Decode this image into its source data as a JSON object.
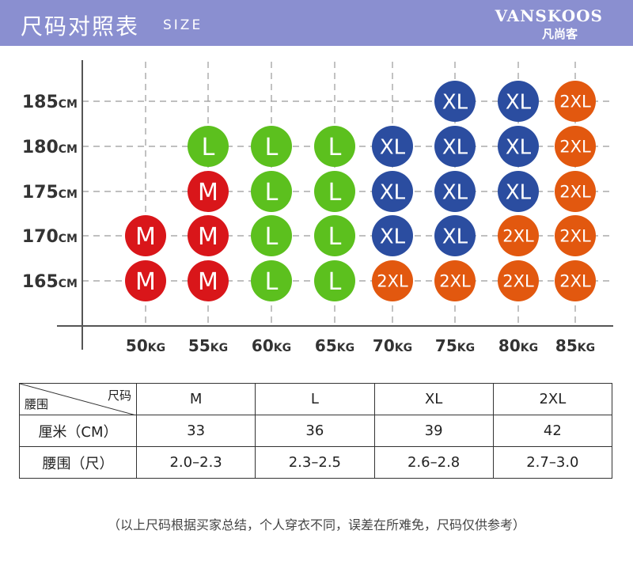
{
  "header": {
    "title": "尺码对照表",
    "subtitle": "SIZE",
    "brand": "VANSKOOS",
    "brand_cn": "凡尚客"
  },
  "chart_data": {
    "type": "table",
    "y_ticks": [
      {
        "num": "185",
        "unit": "CM"
      },
      {
        "num": "180",
        "unit": "CM"
      },
      {
        "num": "175",
        "unit": "CM"
      },
      {
        "num": "170",
        "unit": "CM"
      },
      {
        "num": "165",
        "unit": "CM"
      }
    ],
    "x_ticks": [
      {
        "num": "50",
        "unit": "KG"
      },
      {
        "num": "55",
        "unit": "KG"
      },
      {
        "num": "60",
        "unit": "KG"
      },
      {
        "num": "65",
        "unit": "KG"
      },
      {
        "num": "70",
        "unit": "KG"
      },
      {
        "num": "75",
        "unit": "KG"
      },
      {
        "num": "80",
        "unit": "KG"
      },
      {
        "num": "85",
        "unit": "KG"
      }
    ],
    "grid": [
      [
        "",
        "",
        "",
        "",
        "",
        "XL",
        "XL",
        "2XL"
      ],
      [
        "",
        "L",
        "L",
        "L",
        "XL",
        "XL",
        "XL",
        "2XL"
      ],
      [
        "",
        "M",
        "L",
        "L",
        "XL",
        "XL",
        "XL",
        "2XL"
      ],
      [
        "M",
        "M",
        "L",
        "L",
        "XL",
        "XL",
        "2XL",
        "2XL"
      ],
      [
        "M",
        "M",
        "L",
        "L",
        "2XL",
        "2XL",
        "2XL",
        "2XL"
      ]
    ],
    "colors": {
      "M": "#d9161a",
      "L": "#5cc01e",
      "XL": "#2b4da0",
      "2XL": "#e2580f"
    }
  },
  "size_table": {
    "corner_top": "尺码",
    "corner_bottom": "腰围",
    "columns": [
      "M",
      "L",
      "XL",
      "2XL"
    ],
    "rows": [
      {
        "label": "厘米（CM）",
        "values": [
          "33",
          "36",
          "39",
          "42"
        ]
      },
      {
        "label": "腰围（尺）",
        "values": [
          "2.0–2.3",
          "2.3–2.5",
          "2.6–2.8",
          "2.7–3.0"
        ]
      }
    ]
  },
  "note": "（以上尺码根据买家总结，个人穿衣不同，误差在所难免，尺码仅供参考）"
}
